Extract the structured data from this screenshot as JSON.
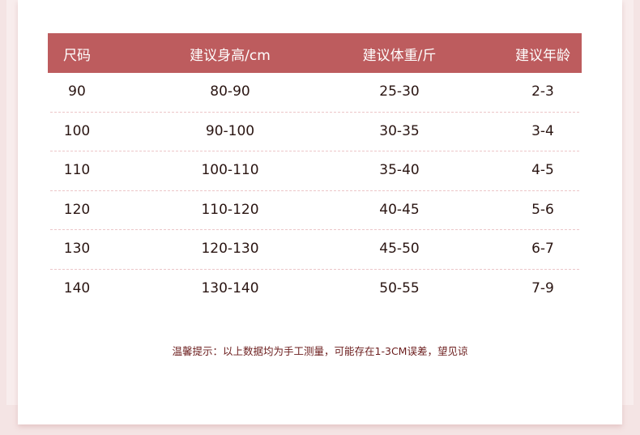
{
  "table": {
    "headers": [
      "尺码",
      "建议身高/cm",
      "建议体重/斤",
      "建议年龄"
    ],
    "rows": [
      [
        "90",
        "80-90",
        "25-30",
        "2-3"
      ],
      [
        "100",
        "90-100",
        "30-35",
        "3-4"
      ],
      [
        "110",
        "100-110",
        "35-40",
        "4-5"
      ],
      [
        "120",
        "110-120",
        "40-45",
        "5-6"
      ],
      [
        "130",
        "120-130",
        "45-50",
        "6-7"
      ],
      [
        "140",
        "130-140",
        "50-55",
        "7-9"
      ]
    ]
  },
  "note": "温馨提示：以上数据均为手工测量，可能存在1-3CM误差，望见谅",
  "colors": {
    "header_bg": "#bd5c5e",
    "note_text": "#6b1c1c",
    "divider": "#ecc6c8"
  }
}
